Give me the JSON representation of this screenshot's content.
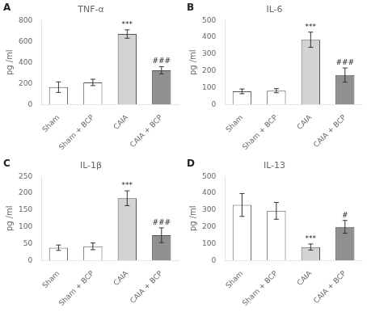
{
  "chart_data": [
    {
      "type": "bar",
      "label": "A",
      "title": "TNF-α",
      "ylabel": "pg /ml",
      "categories": [
        "Sham",
        "Sham + BCP",
        "CAIA",
        "CAIA + BCP"
      ],
      "values": [
        165,
        210,
        670,
        325
      ],
      "errors": [
        50,
        30,
        40,
        35
      ],
      "colors": [
        "#ffffff",
        "#ffffff",
        "#d3d3d3",
        "#909090"
      ],
      "ylim": [
        0,
        800
      ],
      "yticks": [
        0,
        200,
        400,
        600,
        800
      ],
      "grid": false,
      "annotations": [
        {
          "category": "CAIA",
          "text": "***"
        },
        {
          "category": "CAIA + BCP",
          "text": "###"
        }
      ]
    },
    {
      "type": "bar",
      "label": "B",
      "title": "IL-6",
      "ylabel": "pg /ml",
      "categories": [
        "Sham",
        "Sham + BCP",
        "CAIA",
        "CAIA + BCP"
      ],
      "values": [
        78,
        82,
        385,
        175
      ],
      "errors": [
        14,
        12,
        45,
        42
      ],
      "colors": [
        "#ffffff",
        "#ffffff",
        "#d3d3d3",
        "#909090"
      ],
      "ylim": [
        0,
        500
      ],
      "yticks": [
        0,
        100,
        200,
        300,
        400,
        500
      ],
      "grid": false,
      "annotations": [
        {
          "category": "CAIA",
          "text": "***"
        },
        {
          "category": "CAIA + BCP",
          "text": "###"
        }
      ]
    },
    {
      "type": "bar",
      "label": "C",
      "title": "IL-1β",
      "ylabel": "pg /ml",
      "categories": [
        "Sham",
        "Sham + BCP",
        "CAIA",
        "CAIA + BCP"
      ],
      "values": [
        38,
        42,
        185,
        75
      ],
      "errors": [
        8,
        10,
        22,
        22
      ],
      "colors": [
        "#ffffff",
        "#ffffff",
        "#d3d3d3",
        "#909090"
      ],
      "ylim": [
        0,
        250
      ],
      "yticks": [
        0,
        50,
        100,
        150,
        200,
        250
      ],
      "grid": false,
      "annotations": [
        {
          "category": "CAIA",
          "text": "***"
        },
        {
          "category": "CAIA + BCP",
          "text": "###"
        }
      ]
    },
    {
      "type": "bar",
      "label": "D",
      "title": "IL-13",
      "ylabel": "pg /ml",
      "categories": [
        "Sham",
        "Sham + BCP",
        "CAIA",
        "CAIA + BCP"
      ],
      "values": [
        330,
        295,
        80,
        200
      ],
      "errors": [
        68,
        50,
        18,
        38
      ],
      "colors": [
        "#ffffff",
        "#ffffff",
        "#d3d3d3",
        "#909090"
      ],
      "ylim": [
        0,
        500
      ],
      "yticks": [
        0,
        100,
        200,
        300,
        400,
        500
      ],
      "grid": false,
      "annotations": [
        {
          "category": "CAIA",
          "text": "***"
        },
        {
          "category": "CAIA + BCP",
          "text": "#"
        }
      ]
    }
  ]
}
